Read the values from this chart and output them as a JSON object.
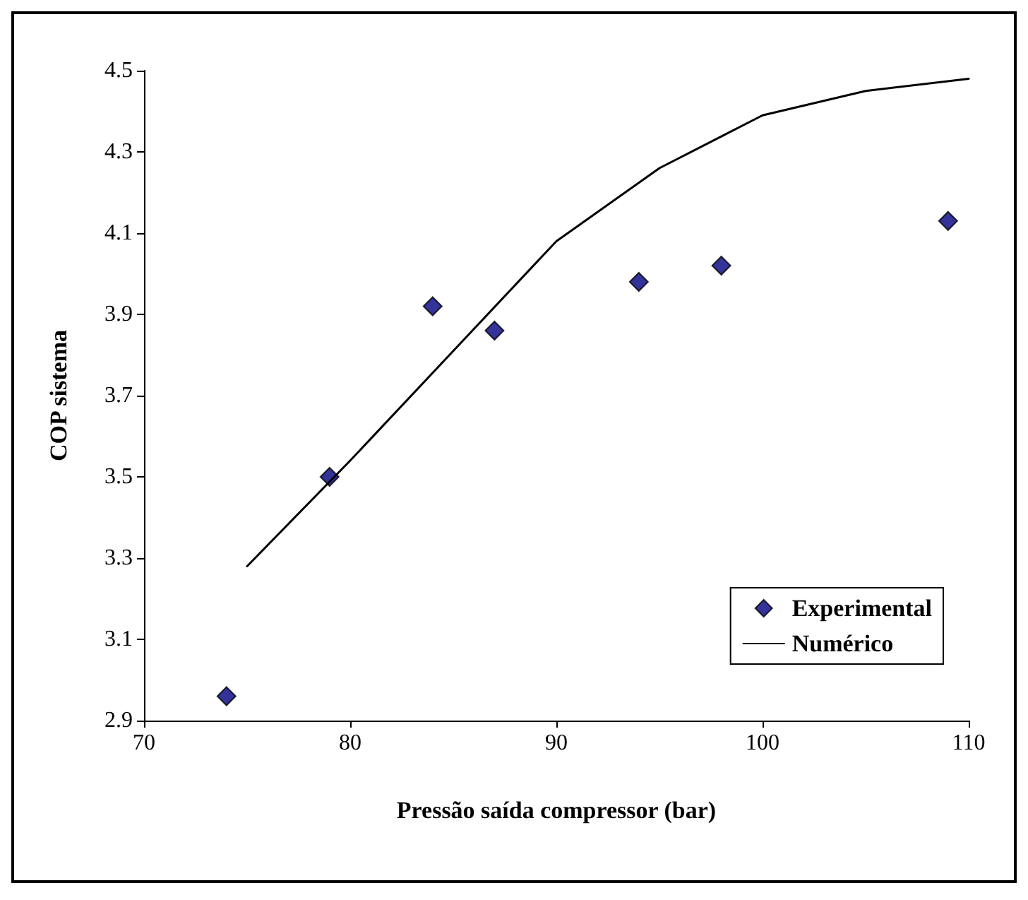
{
  "chart_data": {
    "type": "scatter",
    "xlabel": "Pressão saída compressor (bar)",
    "ylabel": "COP sistema",
    "xlim": [
      70,
      110
    ],
    "xticks": [
      70,
      80,
      90,
      100,
      110
    ],
    "ylim": [
      2.9,
      4.5
    ],
    "yticks": [
      2.9,
      3.1,
      3.3,
      3.5,
      3.7,
      3.9,
      4.1,
      4.3,
      4.5
    ],
    "grid": false,
    "legend": "bottom right",
    "series": [
      {
        "name": "Experimental",
        "color": "#000080",
        "marker": "diamond",
        "x": [
          74,
          79,
          84,
          87,
          94,
          98,
          109
        ],
        "values": [
          2.96,
          3.5,
          3.92,
          3.86,
          3.98,
          4.02,
          4.13
        ]
      },
      {
        "name": "Numérico",
        "type": "line",
        "color": "#000000",
        "marker": "none",
        "line_style": "solid",
        "x": [
          75,
          80,
          85,
          90,
          95,
          100,
          105,
          110
        ],
        "values": [
          3.28,
          3.54,
          3.81,
          4.08,
          4.26,
          4.39,
          4.45,
          4.48
        ]
      }
    ]
  }
}
